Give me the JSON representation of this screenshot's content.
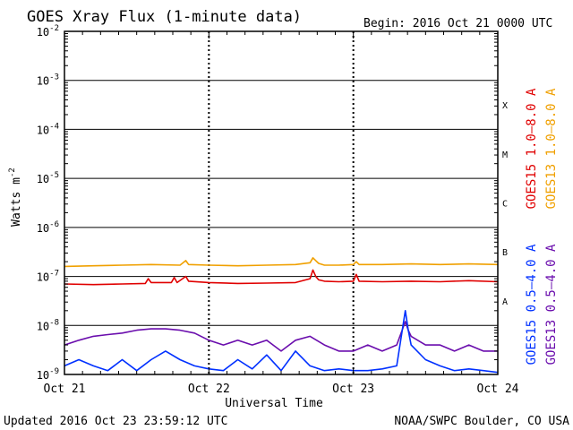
{
  "chart_data": {
    "type": "line",
    "title": "GOES Xray Flux (1-minute data)",
    "begin_label": "Begin:  2016 Oct 21 0000 UTC",
    "ylabel_base": "Watts m",
    "ylabel_exp": "-2",
    "xlabel": "Universal Time",
    "updated": "Updated 2016 Oct 23 23:59:12 UTC",
    "credit": "NOAA/SWPC Boulder, CO USA",
    "y_scale": "log",
    "ylim": [
      1e-09,
      0.01
    ],
    "xlim_days": [
      0,
      3
    ],
    "x_ticks": [
      {
        "day": 0,
        "label": "Oct 21"
      },
      {
        "day": 1,
        "label": "Oct 22"
      },
      {
        "day": 2,
        "label": "Oct 23"
      },
      {
        "day": 3,
        "label": "Oct 24"
      }
    ],
    "y_ticks": [
      {
        "exp": -2,
        "label": "10"
      },
      {
        "exp": -3,
        "label": "10"
      },
      {
        "exp": -4,
        "label": "10"
      },
      {
        "exp": -5,
        "label": "10"
      },
      {
        "exp": -6,
        "label": "10"
      },
      {
        "exp": -7,
        "label": "10"
      },
      {
        "exp": -8,
        "label": "10"
      },
      {
        "exp": -9,
        "label": "10"
      }
    ],
    "flare_classes": [
      {
        "label": "X",
        "exp": -3.5
      },
      {
        "label": "M",
        "exp": -4.5
      },
      {
        "label": "C",
        "exp": -5.5
      },
      {
        "label": "B",
        "exp": -6.5
      },
      {
        "label": "A",
        "exp": -7.5
      }
    ],
    "colors": {
      "goes15_long": "#e00000",
      "goes13_long": "#f0a000",
      "goes15_short": "#0030ff",
      "goes13_short": "#6a0dad",
      "axis": "#000000"
    },
    "legend_right": [
      {
        "name": "GOES15 1.0–8.0 A",
        "color": "#e00000"
      },
      {
        "name": "GOES13 1.0–8.0 A",
        "color": "#f0a000"
      }
    ],
    "legend_right_lower": [
      {
        "name": "GOES15 0.5–4.0 A",
        "color": "#0030ff"
      },
      {
        "name": "GOES13 0.5–4.0 A",
        "color": "#6a0dad"
      }
    ],
    "series": [
      {
        "name": "GOES13 1.0–8.0 A",
        "x_days": [
          0,
          0.2,
          0.4,
          0.6,
          0.8,
          0.84,
          0.86,
          1.0,
          1.2,
          1.4,
          1.6,
          1.7,
          1.72,
          1.74,
          1.76,
          1.8,
          1.9,
          2.0,
          2.02,
          2.04,
          2.2,
          2.4,
          2.6,
          2.8,
          3.0
        ],
        "y": [
          1.6e-07,
          1.65e-07,
          1.7e-07,
          1.75e-07,
          1.7e-07,
          2.1e-07,
          1.75e-07,
          1.7e-07,
          1.65e-07,
          1.7e-07,
          1.75e-07,
          1.9e-07,
          2.4e-07,
          2.1e-07,
          1.85e-07,
          1.7e-07,
          1.7e-07,
          1.75e-07,
          2e-07,
          1.75e-07,
          1.75e-07,
          1.8e-07,
          1.75e-07,
          1.8e-07,
          1.75e-07
        ]
      },
      {
        "name": "GOES15 1.0–8.0 A",
        "x_days": [
          0,
          0.2,
          0.4,
          0.56,
          0.58,
          0.6,
          0.74,
          0.76,
          0.78,
          0.84,
          0.86,
          1.0,
          1.2,
          1.4,
          1.6,
          1.7,
          1.72,
          1.74,
          1.76,
          1.8,
          1.9,
          2.0,
          2.02,
          2.04,
          2.2,
          2.4,
          2.6,
          2.8,
          3.0
        ],
        "y": [
          7e-08,
          6.8e-08,
          7e-08,
          7.2e-08,
          9e-08,
          7.5e-08,
          7.5e-08,
          9.5e-08,
          7.5e-08,
          1e-07,
          8e-08,
          7.5e-08,
          7.2e-08,
          7.3e-08,
          7.5e-08,
          9e-08,
          1.35e-07,
          1e-07,
          8.5e-08,
          8e-08,
          7.8e-08,
          8e-08,
          1.1e-07,
          8e-08,
          7.8e-08,
          8e-08,
          7.8e-08,
          8.2e-08,
          7.8e-08
        ]
      },
      {
        "name": "GOES13 0.5–4.0 A",
        "x_days": [
          0,
          0.1,
          0.2,
          0.3,
          0.4,
          0.5,
          0.6,
          0.7,
          0.8,
          0.9,
          1.0,
          1.1,
          1.2,
          1.3,
          1.4,
          1.5,
          1.6,
          1.7,
          1.8,
          1.9,
          2.0,
          2.1,
          2.2,
          2.3,
          2.36,
          2.38,
          2.4,
          2.5,
          2.6,
          2.7,
          2.8,
          2.9,
          3.0
        ],
        "y": [
          4e-09,
          5e-09,
          6e-09,
          6.5e-09,
          7e-09,
          8e-09,
          8.5e-09,
          8.5e-09,
          8e-09,
          7e-09,
          5e-09,
          4e-09,
          5e-09,
          4e-09,
          5e-09,
          3e-09,
          5e-09,
          6e-09,
          4e-09,
          3e-09,
          3e-09,
          4e-09,
          3e-09,
          4e-09,
          1.2e-08,
          8e-09,
          6e-09,
          4e-09,
          4e-09,
          3e-09,
          4e-09,
          3e-09,
          3e-09
        ]
      },
      {
        "name": "GOES15 0.5–4.0 A",
        "x_days": [
          0,
          0.1,
          0.2,
          0.3,
          0.4,
          0.5,
          0.6,
          0.7,
          0.8,
          0.9,
          1.0,
          1.1,
          1.2,
          1.3,
          1.4,
          1.5,
          1.6,
          1.7,
          1.8,
          1.9,
          2.0,
          2.1,
          2.2,
          2.3,
          2.36,
          2.38,
          2.4,
          2.5,
          2.6,
          2.7,
          2.8,
          2.9,
          3.0
        ],
        "y": [
          1.5e-09,
          2e-09,
          1.5e-09,
          1.2e-09,
          2e-09,
          1.2e-09,
          2e-09,
          3e-09,
          2e-09,
          1.5e-09,
          1.3e-09,
          1.2e-09,
          2e-09,
          1.3e-09,
          2.5e-09,
          1.2e-09,
          3e-09,
          1.5e-09,
          1.2e-09,
          1.3e-09,
          1.2e-09,
          1.2e-09,
          1.3e-09,
          1.5e-09,
          2e-08,
          8e-09,
          4e-09,
          2e-09,
          1.5e-09,
          1.2e-09,
          1.3e-09,
          1.2e-09,
          1.1e-09
        ]
      }
    ]
  }
}
